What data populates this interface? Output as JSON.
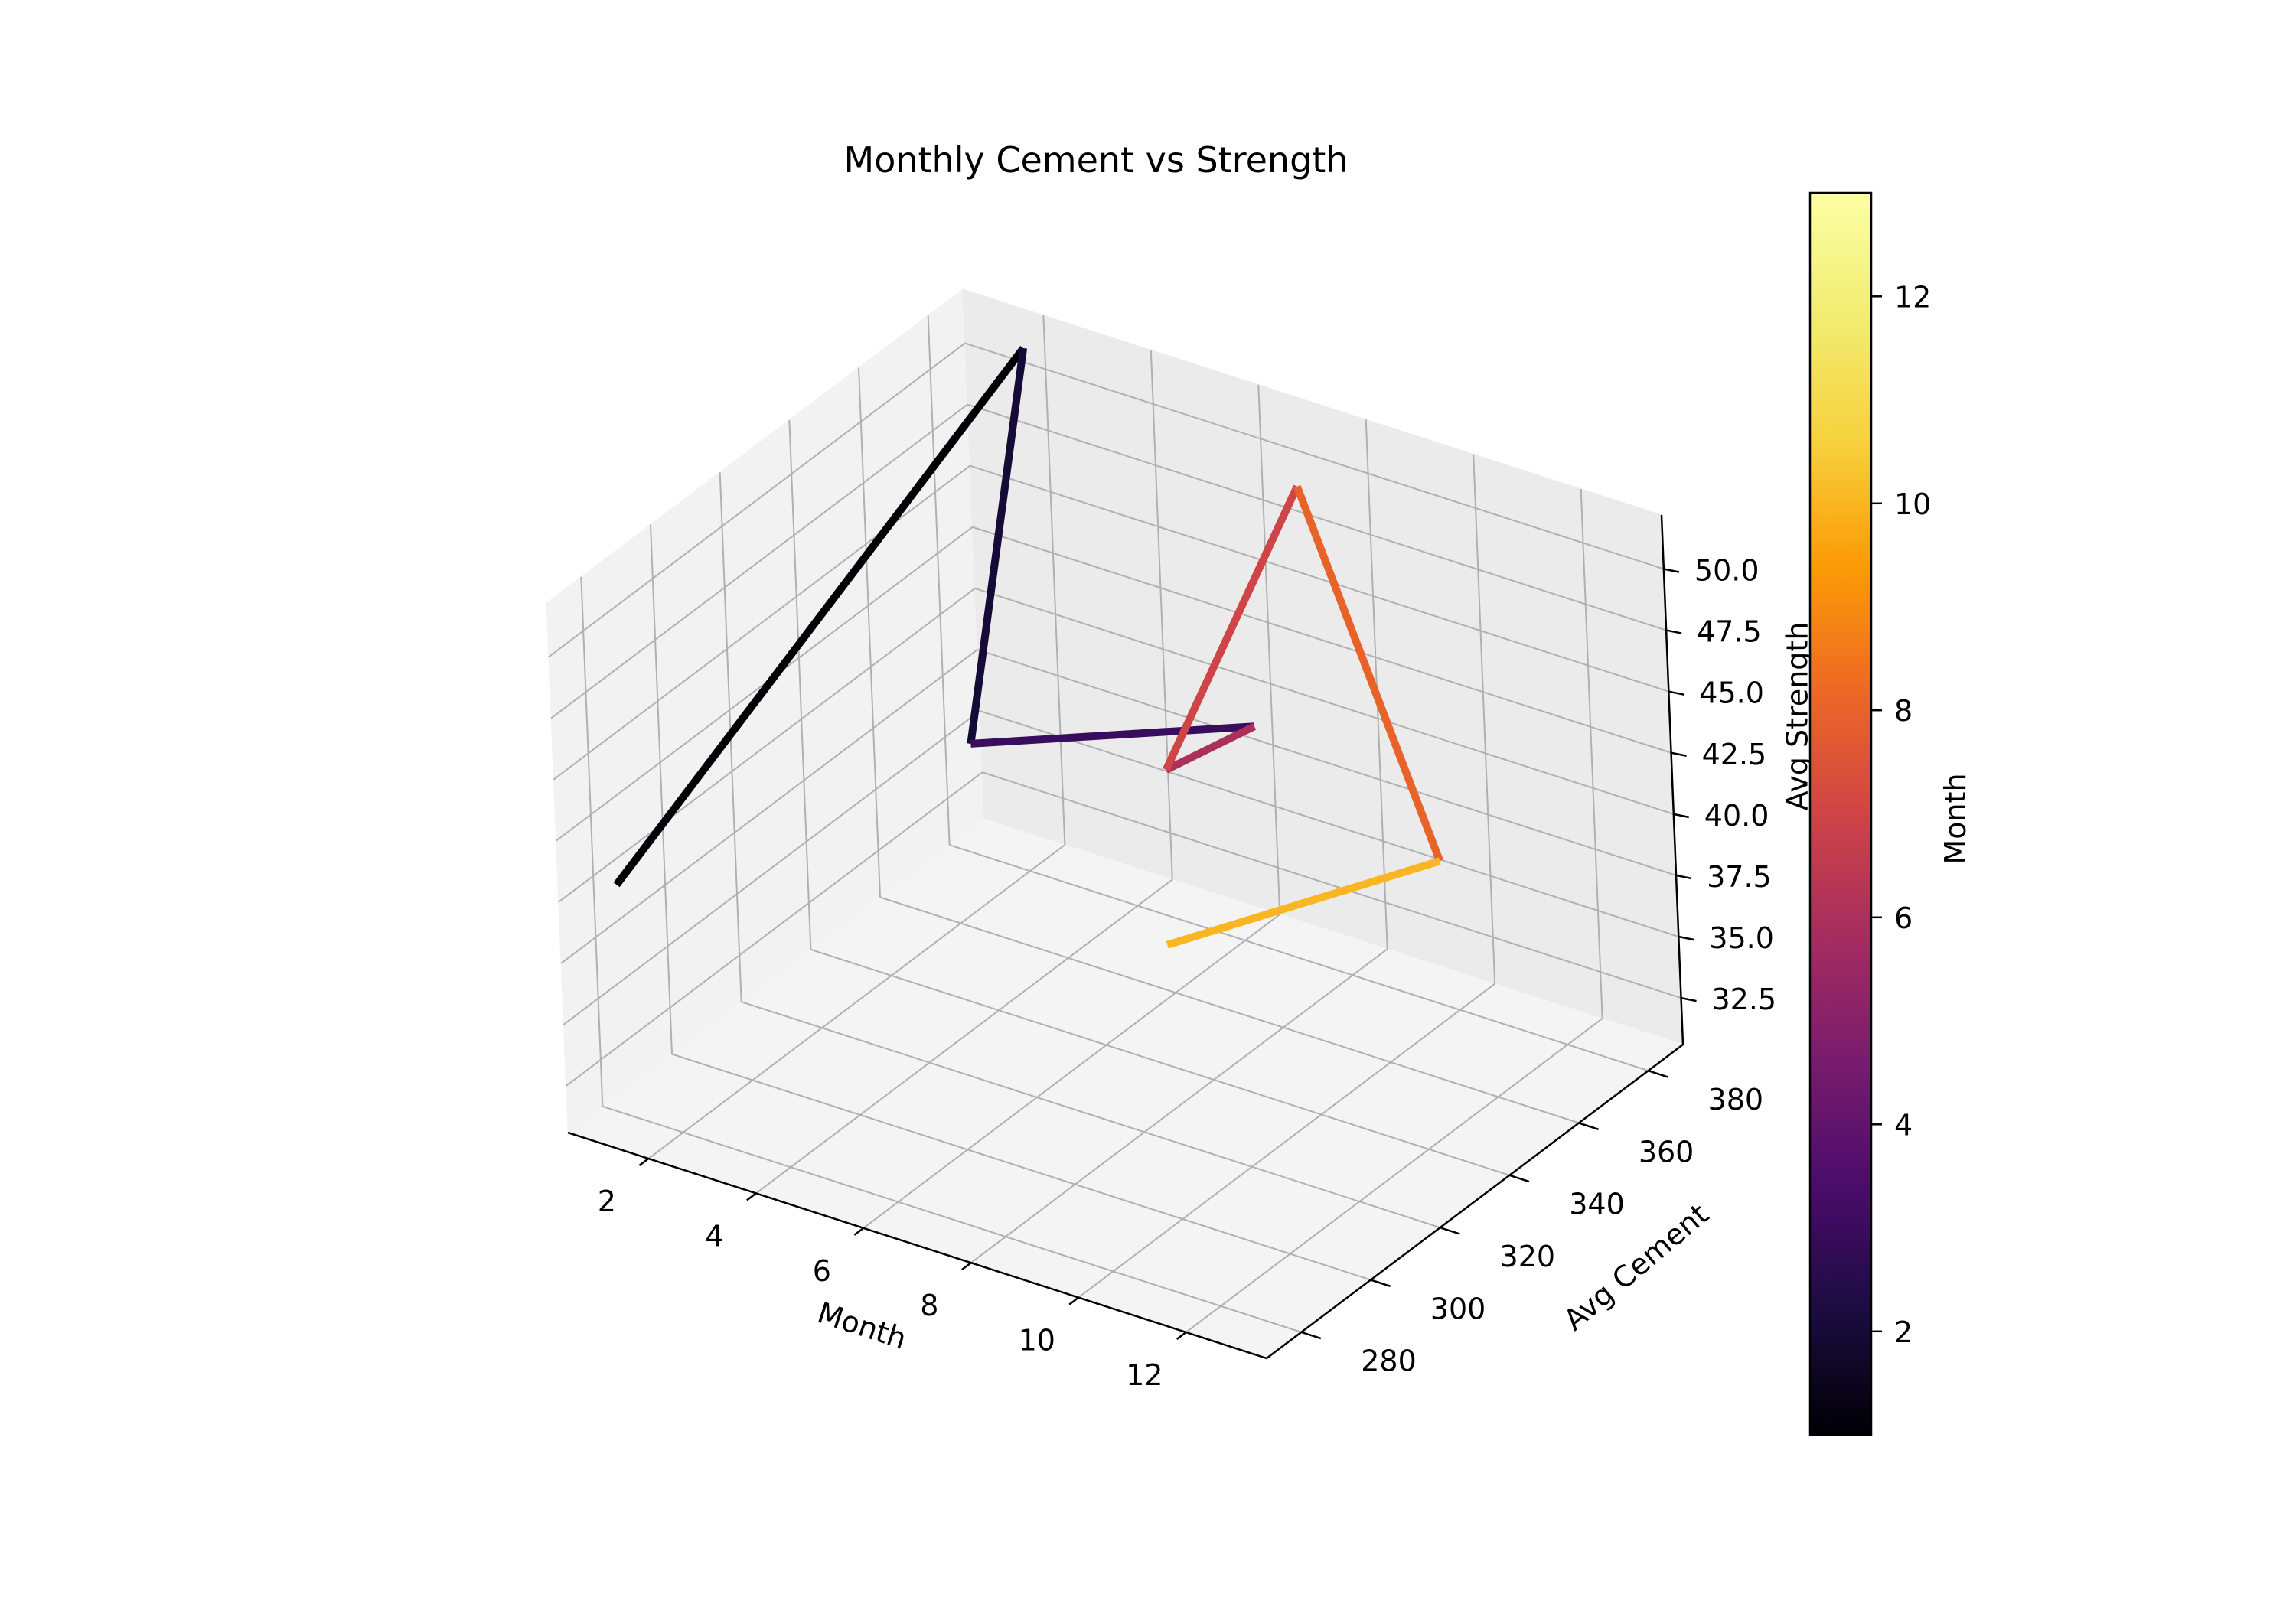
{
  "chart_data": {
    "type": "line",
    "projection": "3d",
    "title": "Monthly Cement vs Strength",
    "xlabel": "Month",
    "ylabel": "Avg Cement",
    "zlabel": "Avg Strength",
    "x_ticks": [
      "2",
      "4",
      "6",
      "8",
      "10",
      "12"
    ],
    "y_ticks": [
      "280",
      "300",
      "320",
      "340",
      "360",
      "380"
    ],
    "z_ticks": [
      "32.5",
      "35.0",
      "37.5",
      "40.0",
      "42.5",
      "45.0",
      "47.5",
      "50.0"
    ],
    "xlim": [
      0.5,
      13.5
    ],
    "ylim": [
      270,
      390
    ],
    "zlim": [
      30.6,
      52.2
    ],
    "grid": true,
    "series": [
      {
        "x": [
          1,
          2,
          3,
          6,
          7,
          8,
          10,
          11
        ],
        "y": [
          279,
          384,
          350,
          385,
          345,
          370,
          376,
          284
        ],
        "z": [
          40.1,
          51.5,
          39.7,
          38.8,
          42.0,
          51.6,
          37.1,
          44.2
        ]
      }
    ],
    "colormap": "inferno",
    "colorbar": {
      "label": "Month",
      "range": [
        1,
        13
      ],
      "ticks": [
        "2",
        "4",
        "6",
        "8",
        "10",
        "12"
      ]
    }
  }
}
